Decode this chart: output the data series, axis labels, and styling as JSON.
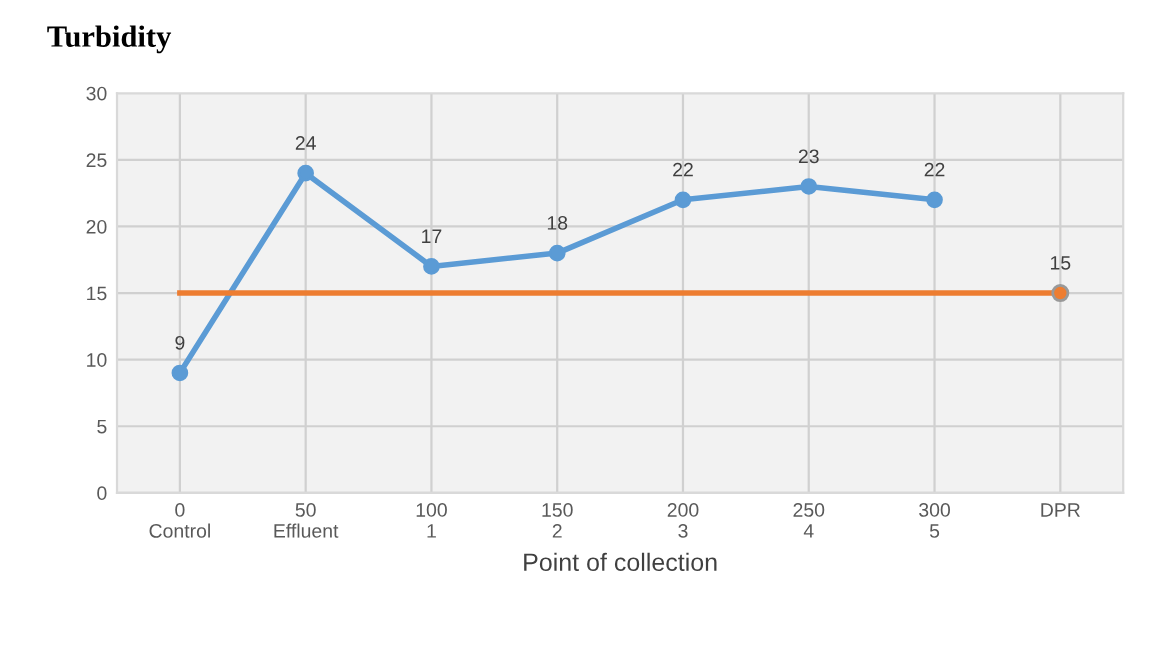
{
  "chart_data": {
    "type": "line",
    "title": "Turbidity",
    "xlabel": "Point of collection",
    "categories": [
      "0\nControl",
      "50\nEffluent",
      "100\n1",
      "150\n2",
      "200\n3",
      "250\n4",
      "300\n5",
      "DPR"
    ],
    "series": [
      {
        "color": "#5b9bd5",
        "marker": "circle",
        "values": [
          9,
          24,
          17,
          18,
          22,
          23,
          22,
          null
        ],
        "value_labels": [
          "9",
          "24",
          "17",
          "18",
          "22",
          "23",
          "22",
          null
        ]
      },
      {
        "color": "#ed7d31",
        "marker": "none",
        "values": [
          15,
          15,
          15,
          15,
          15,
          15,
          15,
          15
        ]
      },
      {
        "type": "scatter",
        "color": "#ed7d31",
        "marker": "circle",
        "values": [
          null,
          null,
          null,
          null,
          null,
          null,
          null,
          15
        ],
        "value_labels": [
          null,
          null,
          null,
          null,
          null,
          null,
          null,
          "15"
        ]
      }
    ],
    "ylim": [
      0,
      30
    ],
    "yticks": [
      0,
      5,
      10,
      15,
      20,
      25,
      30
    ],
    "grid": true
  }
}
